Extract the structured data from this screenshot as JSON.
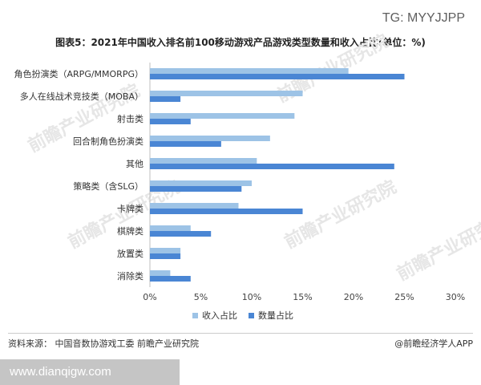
{
  "overlay_top": "TG: MYYJJPP",
  "overlay_bottom": "www.dianqigw.com",
  "watermark_text": "前瞻产业研究院",
  "chart_data": {
    "type": "bar",
    "orientation": "horizontal",
    "title": "图表5：2021年中国收入排名前100移动游戏产品游戏类型数量和收入占比(单位：%)",
    "categories": [
      "角色扮演类（ARPG/MMORPG）",
      "多人在线战术竞技类（MOBA）",
      "射击类",
      "回合制角色扮演类",
      "其他",
      "策略类（含SLG）",
      "卡牌类",
      "棋牌类",
      "放置类",
      "消除类"
    ],
    "series": [
      {
        "name": "收入占比",
        "color": "#9dc3e6",
        "values": [
          19.5,
          15.0,
          14.2,
          11.8,
          10.5,
          10.0,
          8.7,
          4.0,
          3.0,
          2.0
        ]
      },
      {
        "name": "数量占比",
        "color": "#4a86d4",
        "values": [
          25.0,
          3.0,
          4.0,
          7.0,
          24.0,
          9.0,
          15.0,
          6.0,
          3.0,
          4.0
        ]
      }
    ],
    "x_ticks": [
      "0%",
      "5%",
      "10%",
      "15%",
      "20%",
      "25%",
      "30%"
    ],
    "xlim": [
      0,
      30
    ],
    "grid": false,
    "legend_position": "bottom"
  },
  "footer": {
    "source": "资料来源： 中国音数协游戏工委  前瞻产业研究院",
    "brand": "@前瞻经济学人APP"
  }
}
